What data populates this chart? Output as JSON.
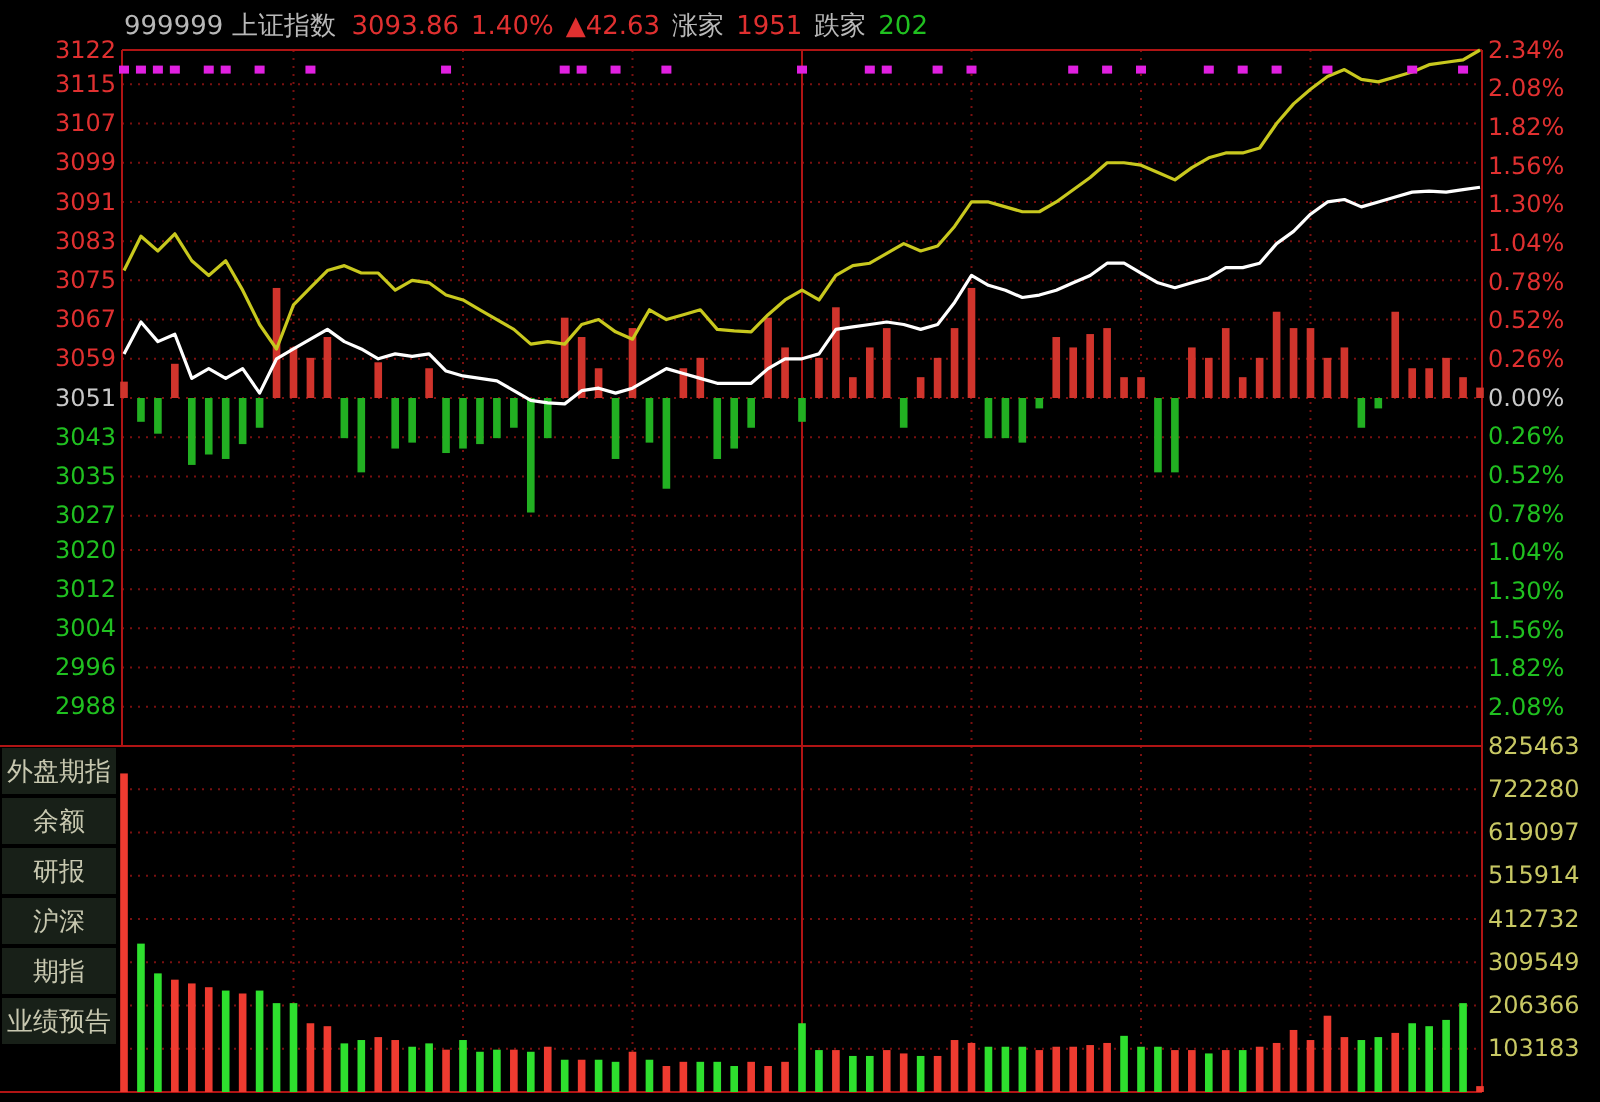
{
  "chart_data": [
    {
      "type": "line",
      "title": "999999 上证指数",
      "annotations": [
        "3093.86",
        "1.40%",
        "▲42.63",
        "涨家",
        "1951",
        "跌家",
        "202"
      ],
      "categories": [
        null,
        null,
        null,
        null,
        null,
        null,
        null,
        null,
        null,
        null,
        null,
        null,
        null,
        null,
        null,
        null,
        null,
        null,
        null,
        null,
        null,
        null,
        null,
        null,
        null,
        null,
        null,
        null,
        null,
        null,
        null,
        null,
        null,
        null,
        null,
        null,
        null,
        null,
        null,
        null,
        null,
        null,
        null,
        null,
        null,
        null,
        null,
        null,
        null,
        null,
        null,
        null,
        null,
        null,
        null,
        null,
        null,
        null,
        null,
        null,
        null,
        null,
        null,
        null,
        null,
        null,
        null,
        null,
        null,
        null,
        null,
        null,
        null,
        null,
        null,
        null,
        null,
        null,
        null,
        null,
        null
      ],
      "series": [
        {
          "type": "bar",
          "axis": "y2",
          "values": [
            0.11,
            -0.16,
            -0.24,
            0.23,
            -0.45,
            -0.38,
            -0.41,
            -0.31,
            -0.2,
            0.74,
            0.34,
            0.27,
            0.41,
            -0.27,
            -0.5,
            0.24,
            -0.34,
            -0.3,
            0.2,
            -0.37,
            -0.34,
            -0.31,
            -0.27,
            -0.2,
            -0.77,
            -0.27,
            0.54,
            0.41,
            0.2,
            -0.41,
            0.47,
            -0.3,
            -0.61,
            0.2,
            0.27,
            -0.41,
            -0.34,
            -0.2,
            0.54,
            0.34,
            -0.16,
            0.27,
            0.61,
            0.14,
            0.34,
            0.47,
            -0.2,
            0.14,
            0.27,
            0.47,
            0.74,
            -0.27,
            -0.27,
            -0.3,
            -0.07,
            0.41,
            0.34,
            0.43,
            0.47,
            0.14,
            0.14,
            -0.5,
            -0.5,
            0.34,
            0.27,
            0.47,
            0.14,
            0.27,
            0.58,
            0.47,
            0.47,
            0.27,
            0.34,
            -0.2,
            -0.07,
            0.58,
            0.2,
            0.2,
            0.27,
            0.14,
            0.07
          ],
          "colors": [
            "#d0342c",
            "#22b022",
            "#22b022",
            "#d0342c",
            "#22b022",
            "#22b022",
            "#22b022",
            "#22b022",
            "#22b022",
            "#d0342c",
            "#d0342c",
            "#d0342c",
            "#d0342c",
            "#22b022",
            "#22b022",
            "#d0342c",
            "#22b022",
            "#22b022",
            "#d0342c",
            "#22b022",
            "#22b022",
            "#22b022",
            "#22b022",
            "#22b022",
            "#22b022",
            "#22b022",
            "#d0342c",
            "#d0342c",
            "#d0342c",
            "#22b022",
            "#d0342c",
            "#22b022",
            "#22b022",
            "#d0342c",
            "#d0342c",
            "#22b022",
            "#22b022",
            "#22b022",
            "#d0342c",
            "#d0342c",
            "#22b022",
            "#d0342c",
            "#d0342c",
            "#d0342c",
            "#d0342c",
            "#d0342c",
            "#22b022",
            "#d0342c",
            "#d0342c",
            "#d0342c",
            "#d0342c",
            "#22b022",
            "#22b022",
            "#22b022",
            "#22b022",
            "#d0342c",
            "#d0342c",
            "#d0342c",
            "#d0342c",
            "#d0342c",
            "#d0342c",
            "#22b022",
            "#22b022",
            "#d0342c",
            "#d0342c",
            "#d0342c",
            "#d0342c",
            "#d0342c",
            "#d0342c",
            "#d0342c",
            "#d0342c",
            "#d0342c",
            "#d0342c",
            "#22b022",
            "#22b022",
            "#d0342c",
            "#d0342c",
            "#d0342c",
            "#d0342c",
            "#d0342c",
            "#d0342c"
          ]
        },
        {
          "color": "#c8c81e",
          "values": [
            3077,
            3084,
            3081,
            3084.5,
            3079,
            3076,
            3079,
            3073,
            3066,
            3061,
            3070,
            3073.5,
            3077,
            3078,
            3076.5,
            3076.5,
            3073,
            3075,
            3074.5,
            3072,
            3071,
            3069,
            3067,
            3065,
            3062,
            3062.5,
            3062,
            3066,
            3067,
            3064.5,
            3063,
            3069,
            3067,
            3068,
            3069,
            3065,
            3064.7,
            3064.5,
            3068,
            3071,
            3073,
            3071,
            3076,
            3078,
            3078.5,
            3080.5,
            3082.5,
            3081,
            3082,
            3086,
            3091,
            3091,
            3090,
            3089,
            3089,
            3091,
            3093.5,
            3096,
            3099,
            3099,
            3098.5,
            3097,
            3095.5,
            3098,
            3100,
            3101,
            3101,
            3102,
            3107,
            3111,
            3114,
            3116.6,
            3118,
            3116,
            3115.5,
            3116.5,
            3117.5,
            3119,
            3119.5,
            3120,
            3122
          ]
        },
        {
          "color": "#ffffff",
          "values": [
            3060,
            3066.5,
            3062.5,
            3064,
            3055,
            3057,
            3055,
            3057,
            3052,
            3059,
            3061,
            3063,
            3065,
            3062.5,
            3061,
            3059,
            3060,
            3059.5,
            3060,
            3056.5,
            3055.5,
            3055,
            3054.5,
            3052.5,
            3050.5,
            3050,
            3049.8,
            3052.5,
            3053,
            3052,
            3053,
            3055,
            3057,
            3056,
            3055,
            3054,
            3054,
            3054,
            3057,
            3059,
            3059,
            3060,
            3065,
            3065.5,
            3066,
            3066.5,
            3066,
            3065,
            3066,
            3070.5,
            3076,
            3074,
            3073,
            3071.5,
            3072,
            3073,
            3074.5,
            3076,
            3078.5,
            3078.5,
            3076.5,
            3074.5,
            3073.5,
            3074.5,
            3075.5,
            3077.6,
            3077.6,
            3078.5,
            3082.5,
            3085,
            3088.5,
            3091,
            3091.5,
            3090,
            3091,
            3092,
            3093,
            3093.2,
            3093,
            3093.5,
            3094
          ]
        },
        {
          "type": "scatter",
          "marker": "square",
          "color": "#e020e0",
          "values": [
            3118,
            3118,
            3118,
            3118,
            null,
            3118,
            3118,
            null,
            3118,
            null,
            null,
            3118,
            null,
            null,
            null,
            null,
            null,
            null,
            null,
            3118,
            null,
            null,
            null,
            null,
            null,
            null,
            3118,
            3118,
            null,
            3118,
            null,
            null,
            3118,
            null,
            null,
            null,
            null,
            null,
            null,
            null,
            3118,
            null,
            null,
            null,
            3118,
            3118,
            null,
            null,
            3118,
            null,
            3118,
            null,
            null,
            null,
            null,
            null,
            3118,
            null,
            3118,
            null,
            3118,
            null,
            null,
            null,
            3118,
            null,
            3118,
            null,
            3118,
            null,
            null,
            3118,
            null,
            null,
            null,
            null,
            3118,
            null,
            null,
            3118,
            null
          ]
        }
      ],
      "ylim": [
        2980,
        3122
      ],
      "yticks": [
        3122,
        3115,
        3107,
        3099,
        3091,
        3083,
        3075,
        3067,
        3059,
        3051,
        3043,
        3035,
        3027,
        3020,
        3012,
        3004,
        2996,
        2988
      ],
      "y2lim": [
        -2.34,
        2.34
      ],
      "y2ticks": [
        {
          "value": 2.34,
          "label": "2.34%"
        },
        {
          "value": 2.08,
          "label": "2.08%"
        },
        {
          "value": 1.82,
          "label": "1.82%"
        },
        {
          "value": 1.56,
          "label": "1.56%"
        },
        {
          "value": 1.3,
          "label": "1.30%"
        },
        {
          "value": 1.04,
          "label": "1.04%"
        },
        {
          "value": 0.78,
          "label": "0.78%"
        },
        {
          "value": 0.52,
          "label": "0.52%"
        },
        {
          "value": 0.26,
          "label": "0.26%"
        },
        {
          "value": 0,
          "label": "0.00%"
        },
        {
          "value": -0.26,
          "label": "0.26%"
        },
        {
          "value": -0.52,
          "label": "0.52%"
        },
        {
          "value": -0.78,
          "label": "0.78%"
        },
        {
          "value": -1.04,
          "label": "1.04%"
        },
        {
          "value": -1.3,
          "label": "1.30%"
        },
        {
          "value": -1.56,
          "label": "1.56%"
        },
        {
          "value": -1.82,
          "label": "1.82%"
        },
        {
          "value": -2.08,
          "label": "2.08%"
        }
      ],
      "grid": true,
      "tick_labels": "y"
    },
    {
      "type": "bar",
      "annotations": [
        "外盘期指",
        "余额",
        "研报",
        "沪深",
        "期指",
        "业绩预告"
      ],
      "categories": [
        null,
        null,
        null,
        null,
        null,
        null,
        null,
        null,
        null,
        null,
        null,
        null,
        null,
        null,
        null,
        null,
        null,
        null,
        null,
        null,
        null,
        null,
        null,
        null,
        null,
        null,
        null,
        null,
        null,
        null,
        null,
        null,
        null,
        null,
        null,
        null,
        null,
        null,
        null,
        null,
        null,
        null,
        null,
        null,
        null,
        null,
        null,
        null,
        null,
        null,
        null,
        null,
        null,
        null,
        null,
        null,
        null,
        null,
        null,
        null,
        null,
        null,
        null,
        null,
        null,
        null,
        null,
        null,
        null,
        null,
        null,
        null,
        null,
        null,
        null,
        null,
        null,
        null,
        null,
        null,
        null
      ],
      "values": [
        760000,
        354000,
        283000,
        268000,
        259000,
        250000,
        242000,
        235000,
        242000,
        212000,
        212000,
        164000,
        157000,
        116000,
        124000,
        131000,
        124000,
        108000,
        116000,
        101000,
        124000,
        96000,
        101000,
        101000,
        96000,
        108000,
        77000,
        77000,
        77000,
        72000,
        96000,
        77000,
        62000,
        72000,
        72000,
        72000,
        62000,
        72000,
        62000,
        72000,
        164000,
        100000,
        100000,
        86000,
        86000,
        100000,
        92000,
        86000,
        86000,
        124000,
        117000,
        108000,
        108000,
        108000,
        100000,
        108000,
        108000,
        112000,
        117000,
        134000,
        108000,
        108000,
        100000,
        100000,
        92000,
        100000,
        100000,
        108000,
        117000,
        148000,
        124000,
        182000,
        131000,
        124000,
        131000,
        141000,
        164000,
        157000,
        172000,
        212000,
        14000
      ],
      "colors": [
        "#ee3b30",
        "#2ee02e",
        "#2ee02e",
        "#ee3b30",
        "#ee3b30",
        "#ee3b30",
        "#2ee02e",
        "#ee3b30",
        "#2ee02e",
        "#2ee02e",
        "#2ee02e",
        "#ee3b30",
        "#ee3b30",
        "#2ee02e",
        "#2ee02e",
        "#ee3b30",
        "#ee3b30",
        "#2ee02e",
        "#2ee02e",
        "#ee3b30",
        "#2ee02e",
        "#2ee02e",
        "#2ee02e",
        "#ee3b30",
        "#2ee02e",
        "#ee3b30",
        "#2ee02e",
        "#ee3b30",
        "#2ee02e",
        "#2ee02e",
        "#ee3b30",
        "#2ee02e",
        "#ee3b30",
        "#ee3b30",
        "#2ee02e",
        "#2ee02e",
        "#2ee02e",
        "#ee3b30",
        "#ee3b30",
        "#ee3b30",
        "#2ee02e",
        "#2ee02e",
        "#ee3b30",
        "#2ee02e",
        "#2ee02e",
        "#ee3b30",
        "#ee3b30",
        "#2ee02e",
        "#ee3b30",
        "#ee3b30",
        "#ee3b30",
        "#2ee02e",
        "#2ee02e",
        "#2ee02e",
        "#ee3b30",
        "#ee3b30",
        "#ee3b30",
        "#ee3b30",
        "#ee3b30",
        "#2ee02e",
        "#2ee02e",
        "#2ee02e",
        "#ee3b30",
        "#ee3b30",
        "#2ee02e",
        "#ee3b30",
        "#2ee02e",
        "#ee3b30",
        "#ee3b30",
        "#ee3b30",
        "#ee3b30",
        "#ee3b30",
        "#ee3b30",
        "#2ee02e",
        "#2ee02e",
        "#ee3b30",
        "#2ee02e",
        "#2ee02e",
        "#2ee02e",
        "#2ee02e",
        "#ee3b30"
      ],
      "ylim": [
        0,
        825463
      ],
      "yticks": [
        825463,
        722280,
        619097,
        515914,
        412732,
        309549,
        206366,
        103183
      ],
      "grid": true,
      "tick_labels": "y"
    }
  ]
}
